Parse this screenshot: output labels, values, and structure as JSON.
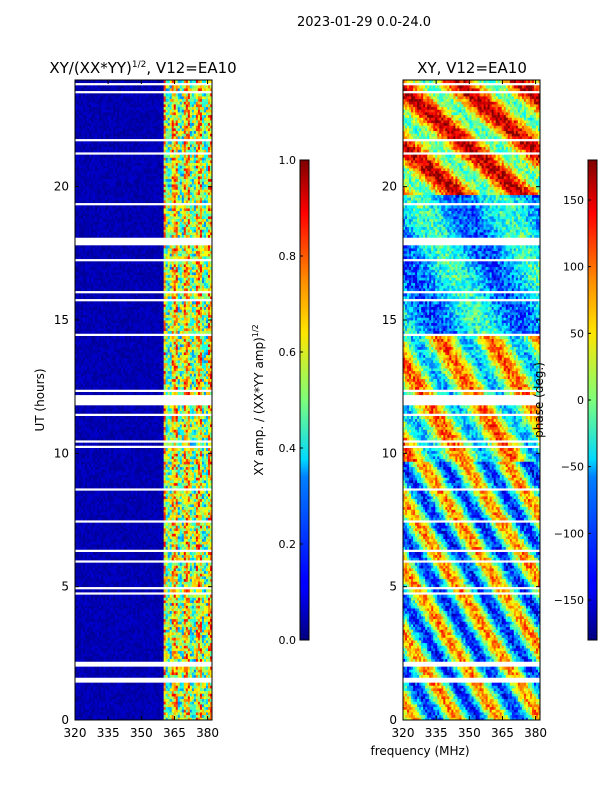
{
  "figure_title": "2023-01-29 0.0-24.0",
  "shared_xlabel": "frequency (MHz)",
  "chart_data": [
    {
      "type": "heatmap",
      "title": "XY/(XX*YY)",
      "title_sup": "1/2",
      "title_suffix": ", V12=EA10",
      "xlabel": "",
      "ylabel": "UT (hours)",
      "xlim": [
        320,
        382
      ],
      "ylim": [
        0,
        24
      ],
      "xticks": [
        320,
        335,
        350,
        365,
        380
      ],
      "yticks": [
        0,
        5,
        10,
        15,
        20
      ],
      "colormap": "jet",
      "colorbar": {
        "label": "XY amp. / (XX*YY amp)",
        "label_sup": "1/2",
        "range": [
          0.0,
          1.0
        ],
        "ticks": [
          "0.0",
          "0.2",
          "0.4",
          "0.6",
          "0.8",
          "1.0"
        ]
      }
    },
    {
      "type": "heatmap",
      "title": "XY, V12=EA10",
      "xlabel": "frequency (MHz)",
      "ylabel": "",
      "xlim": [
        320,
        382
      ],
      "ylim": [
        0,
        24
      ],
      "xticks": [
        320,
        335,
        350,
        365,
        380
      ],
      "yticks": [
        0,
        5,
        10,
        15,
        20
      ],
      "colormap": "jet",
      "colorbar": {
        "label": "phase (deg.)",
        "range": [
          -180,
          180
        ],
        "ticks": [
          "−150",
          "−100",
          "−50",
          "0",
          "50",
          "100",
          "150"
        ]
      }
    }
  ]
}
